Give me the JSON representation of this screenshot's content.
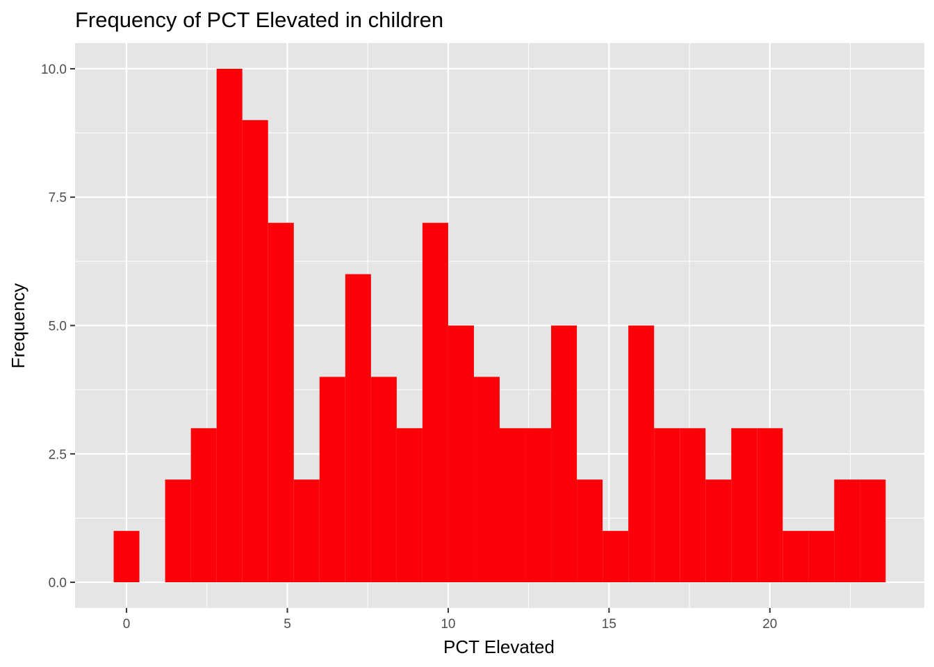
{
  "chart_data": {
    "type": "bar",
    "title": "Frequency of PCT Elevated in children",
    "xlabel": "PCT Elevated",
    "ylabel": "Frequency",
    "bar_color": "#fc0107",
    "panel_color": "#e5e5e5",
    "grid_color": "#ffffff",
    "grid": true,
    "legend": "none",
    "xlim": [
      -0.4,
      23.6
    ],
    "ylim": [
      0,
      10
    ],
    "bin_width": 0.8,
    "xticks": [
      0,
      5,
      10,
      15,
      20
    ],
    "xtick_labels": [
      "0",
      "5",
      "10",
      "15",
      "20"
    ],
    "yticks": [
      0,
      2.5,
      5,
      7.5,
      10
    ],
    "ytick_labels": [
      "0.0",
      "2.5",
      "5.0",
      "7.5",
      "10.0"
    ],
    "bins": [
      {
        "x0": -0.4,
        "x1": 0.4,
        "count": 1
      },
      {
        "x0": 0.4,
        "x1": 1.2,
        "count": 0
      },
      {
        "x0": 1.2,
        "x1": 2.0,
        "count": 2
      },
      {
        "x0": 2.0,
        "x1": 2.8,
        "count": 3
      },
      {
        "x0": 2.8,
        "x1": 3.6,
        "count": 10
      },
      {
        "x0": 3.6,
        "x1": 4.4,
        "count": 9
      },
      {
        "x0": 4.4,
        "x1": 5.2,
        "count": 7
      },
      {
        "x0": 5.2,
        "x1": 6.0,
        "count": 2
      },
      {
        "x0": 6.0,
        "x1": 6.8,
        "count": 4
      },
      {
        "x0": 6.8,
        "x1": 7.6,
        "count": 6
      },
      {
        "x0": 7.6,
        "x1": 8.4,
        "count": 4
      },
      {
        "x0": 8.4,
        "x1": 9.2,
        "count": 3
      },
      {
        "x0": 9.2,
        "x1": 10.0,
        "count": 7
      },
      {
        "x0": 10.0,
        "x1": 10.8,
        "count": 5
      },
      {
        "x0": 10.8,
        "x1": 11.6,
        "count": 4
      },
      {
        "x0": 11.6,
        "x1": 12.4,
        "count": 3
      },
      {
        "x0": 12.4,
        "x1": 13.2,
        "count": 3
      },
      {
        "x0": 13.2,
        "x1": 14.0,
        "count": 5
      },
      {
        "x0": 14.0,
        "x1": 14.8,
        "count": 2
      },
      {
        "x0": 14.8,
        "x1": 15.6,
        "count": 1
      },
      {
        "x0": 15.6,
        "x1": 16.4,
        "count": 5
      },
      {
        "x0": 16.4,
        "x1": 17.2,
        "count": 3
      },
      {
        "x0": 17.2,
        "x1": 18.0,
        "count": 3
      },
      {
        "x0": 18.0,
        "x1": 18.8,
        "count": 2
      },
      {
        "x0": 18.8,
        "x1": 19.6,
        "count": 3
      },
      {
        "x0": 19.6,
        "x1": 20.4,
        "count": 3
      },
      {
        "x0": 20.4,
        "x1": 21.2,
        "count": 1
      },
      {
        "x0": 21.2,
        "x1": 22.0,
        "count": 1
      },
      {
        "x0": 22.0,
        "x1": 22.8,
        "count": 2
      },
      {
        "x0": 22.8,
        "x1": 23.6,
        "count": 2
      }
    ]
  }
}
